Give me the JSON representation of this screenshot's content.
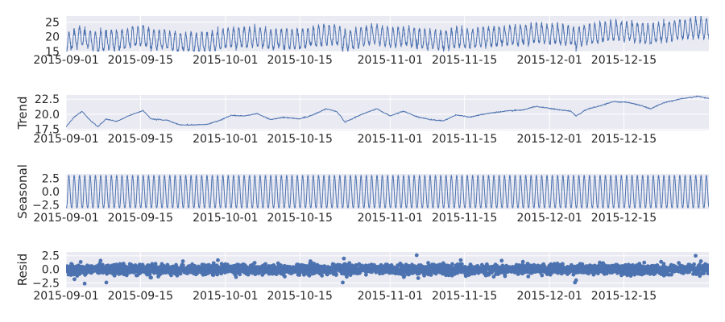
{
  "chart_data": [
    {
      "type": "line",
      "panel": "observed",
      "ylabel": "",
      "x_range": [
        "2015-09-01",
        "2015-12-31"
      ],
      "ylim": [
        15,
        27
      ],
      "y_ticks": [
        15,
        20,
        25
      ],
      "x_ticks": [
        "2015-09-01",
        "2015-09-15",
        "2015-10-01",
        "2015-10-15",
        "2015-11-01",
        "2015-11-15",
        "2015-12-01",
        "2015-12-15"
      ],
      "grid": true,
      "sampling": "hourly",
      "series": [
        {
          "trend_knots": [
            [
              "2015-09-01",
              18.0
            ],
            [
              "2015-09-05",
              20.3
            ],
            [
              "2015-09-08",
              18.7
            ],
            [
              "2015-09-17",
              20.6
            ],
            [
              "2015-09-22",
              18.5
            ],
            [
              "2015-10-01",
              18.3
            ],
            [
              "2015-10-06",
              19.8
            ],
            [
              "2015-10-15",
              19.2
            ],
            [
              "2015-10-20",
              20.6
            ],
            [
              "2015-10-24",
              18.6
            ],
            [
              "2015-10-28",
              20.9
            ],
            [
              "2015-11-05",
              19.2
            ],
            [
              "2015-11-10",
              18.9
            ],
            [
              "2015-11-15",
              20.3
            ],
            [
              "2015-11-21",
              20.5
            ],
            [
              "2015-11-24",
              21.3
            ],
            [
              "2015-11-30",
              20.8
            ],
            [
              "2015-12-04",
              20.2
            ],
            [
              "2015-12-08",
              22.0
            ],
            [
              "2015-12-15",
              22.0
            ],
            [
              "2015-12-19",
              21.0
            ],
            [
              "2015-12-22",
              22.2
            ],
            [
              "2015-12-29",
              23.2
            ],
            [
              "2015-12-31",
              22.7
            ]
          ],
          "daily_amplitude": 2.8,
          "resid_sd": 0.45
        }
      ]
    },
    {
      "type": "line",
      "panel": "trend",
      "ylabel": "Trend",
      "x_range": [
        "2015-09-01",
        "2015-12-31"
      ],
      "ylim": [
        17.3,
        23.2
      ],
      "y_ticks": [
        17.5,
        20.0,
        22.5
      ],
      "x_ticks": [
        "2015-09-01",
        "2015-09-15",
        "2015-10-01",
        "2015-10-15",
        "2015-11-01",
        "2015-11-15",
        "2015-12-01",
        "2015-12-15"
      ],
      "grid": true,
      "series": [
        {
          "values": [
            [
              0,
              17.9
            ],
            [
              1.5,
              19.5
            ],
            [
              3,
              20.5
            ],
            [
              4.5,
              19.0
            ],
            [
              6,
              17.9
            ],
            [
              7.5,
              19.2
            ],
            [
              9.5,
              18.8
            ],
            [
              12,
              19.8
            ],
            [
              14.5,
              20.6
            ],
            [
              16,
              19.2
            ],
            [
              19,
              19.0
            ],
            [
              21.5,
              18.2
            ],
            [
              24,
              18.2
            ],
            [
              26.5,
              18.3
            ],
            [
              29,
              19.0
            ],
            [
              31,
              19.8
            ],
            [
              33.5,
              19.7
            ],
            [
              36,
              20.1
            ],
            [
              38.5,
              19.1
            ],
            [
              41,
              19.5
            ],
            [
              44,
              19.2
            ],
            [
              46.5,
              19.9
            ],
            [
              49,
              20.9
            ],
            [
              51,
              20.4
            ],
            [
              52.5,
              18.7
            ],
            [
              54,
              19.3
            ],
            [
              56,
              20.1
            ],
            [
              58.5,
              20.9
            ],
            [
              61,
              19.7
            ],
            [
              63.5,
              20.5
            ],
            [
              66,
              19.6
            ],
            [
              68.5,
              19.1
            ],
            [
              71,
              18.9
            ],
            [
              73.5,
              19.9
            ],
            [
              76,
              19.5
            ],
            [
              78.5,
              20.0
            ],
            [
              81,
              20.3
            ],
            [
              83.5,
              20.6
            ],
            [
              86,
              20.7
            ],
            [
              88.5,
              21.3
            ],
            [
              91,
              21.0
            ],
            [
              93,
              20.7
            ],
            [
              95,
              20.5
            ],
            [
              96,
              19.7
            ],
            [
              98,
              20.8
            ],
            [
              100.5,
              21.4
            ],
            [
              103,
              22.1
            ],
            [
              105.5,
              22.0
            ],
            [
              108,
              21.5
            ],
            [
              110,
              20.9
            ],
            [
              112.5,
              21.9
            ],
            [
              115,
              22.4
            ],
            [
              117.5,
              22.8
            ],
            [
              119,
              23.0
            ],
            [
              120,
              22.8
            ],
            [
              121,
              22.6
            ]
          ]
        }
      ]
    },
    {
      "type": "line",
      "panel": "seasonal",
      "ylabel": "Seasonal",
      "x_range": [
        "2015-09-01",
        "2015-12-31"
      ],
      "ylim": [
        -3.3,
        3.3
      ],
      "y_ticks": [
        -2.5,
        0.0,
        2.5
      ],
      "x_ticks": [
        "2015-09-01",
        "2015-09-15",
        "2015-10-01",
        "2015-10-15",
        "2015-11-01",
        "2015-11-15",
        "2015-12-01",
        "2015-12-15"
      ],
      "grid": true,
      "period": "1 day",
      "series": [
        {
          "daily_profile": [
            -2.9,
            -3.0,
            -3.0,
            -2.9,
            -2.6,
            -2.1,
            -1.4,
            -0.6,
            0.3,
            1.2,
            2.1,
            2.7,
            3.0,
            3.0,
            2.8,
            2.4,
            1.8,
            1.1,
            0.4,
            -0.3,
            -1.0,
            -1.7,
            -2.3,
            -2.7
          ]
        }
      ]
    },
    {
      "type": "scatter",
      "panel": "residual",
      "ylabel": "Resid",
      "x_range": [
        "2015-09-01",
        "2015-12-31"
      ],
      "ylim": [
        -3.3,
        3.2
      ],
      "y_ticks": [
        -2.5,
        0.0,
        2.5
      ],
      "x_ticks": [
        "2015-09-01",
        "2015-09-15",
        "2015-10-01",
        "2015-10-15",
        "2015-11-01",
        "2015-11-15",
        "2015-12-01",
        "2015-12-15"
      ],
      "grid": true,
      "sampling": "hourly",
      "series": [
        {
          "resid_sd": 0.45,
          "outliers": [
            [
              1.6,
              -1.8
            ],
            [
              3.5,
              -2.6
            ],
            [
              6.5,
              1.6
            ],
            [
              7.6,
              -2.4
            ],
            [
              16,
              -1.5
            ],
            [
              22,
              1.5
            ],
            [
              28.6,
              1.7
            ],
            [
              32,
              -1.4
            ],
            [
              46,
              1.5
            ],
            [
              52.1,
              -2.4
            ],
            [
              52.3,
              2.0
            ],
            [
              66.0,
              2.6
            ],
            [
              66.3,
              -1.6
            ],
            [
              82,
              1.6
            ],
            [
              87,
              -1.3
            ],
            [
              95.8,
              -2.4
            ],
            [
              96.0,
              -2.0
            ],
            [
              112,
              1.4
            ],
            [
              118.5,
              2.5
            ],
            [
              119.5,
              1.5
            ]
          ]
        }
      ]
    }
  ]
}
